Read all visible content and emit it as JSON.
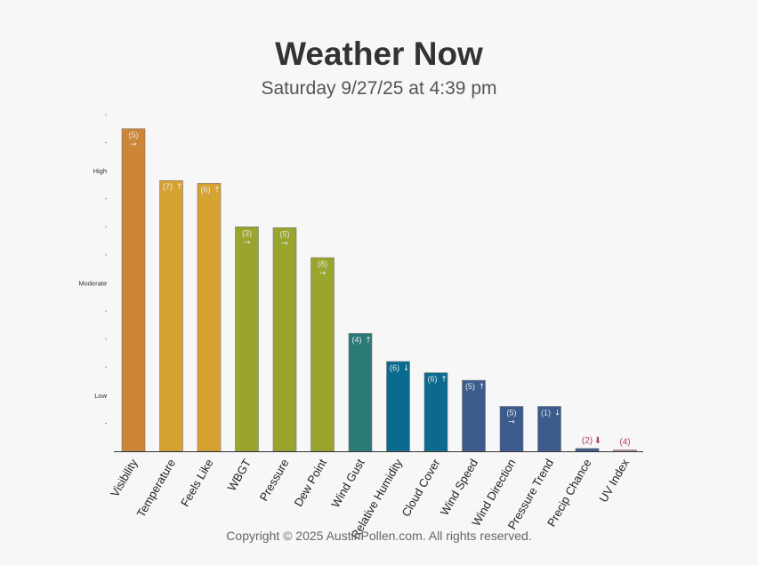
{
  "header": {
    "title": "Weather Now",
    "subtitle": "Saturday 9/27/25 at 4:39 pm"
  },
  "footer": {
    "copyright": "Copyright © 2025 AustinPollen.com.  All rights reserved."
  },
  "chart_data": {
    "type": "bar",
    "categories": [
      "Visibility",
      "Temperature",
      "Feels Like",
      "WBGT",
      "Pressure",
      "Dew Point",
      "Wind Gust",
      "Relative Humidity",
      "Cloud Cover",
      "Wind Speed",
      "Wind Direction",
      "Pressure Trend",
      "Precip Chance",
      "UV Index"
    ],
    "values": [
      11.5,
      9.65,
      9.55,
      8.0,
      7.97,
      6.9,
      4.2,
      3.2,
      2.8,
      2.53,
      1.6,
      1.6,
      0.1,
      0.05
    ],
    "labels": [
      "(5)",
      "(7)",
      "(6)",
      "(3)",
      "(5)",
      "(8)",
      "(4)",
      "(6)",
      "(6)",
      "(5)",
      "(5)",
      "(1)",
      "(2)",
      "(4)"
    ],
    "trends": [
      "→",
      "↑",
      "↑",
      "→",
      "→",
      "→",
      "↑",
      "↓",
      "↑",
      "↑",
      "→",
      "↓",
      "⬇",
      ""
    ],
    "colors": [
      "#cd8538",
      "#d6a333",
      "#d6a333",
      "#9aa52e",
      "#9aa52e",
      "#9aa52e",
      "#2a7a78",
      "#0a6b8e",
      "#0a6b8e",
      "#3a5b8c",
      "#3a5b8c",
      "#3a5b8c",
      "#3a5b8c",
      "#e0a0b0"
    ],
    "ylim": [
      0,
      12
    ],
    "y_ticks": [
      {
        "value": 1,
        "label": ""
      },
      {
        "value": 2,
        "label": "Low"
      },
      {
        "value": 3,
        "label": ""
      },
      {
        "value": 4,
        "label": ""
      },
      {
        "value": 5,
        "label": ""
      },
      {
        "value": 6,
        "label": "Moderate"
      },
      {
        "value": 7,
        "label": ""
      },
      {
        "value": 8,
        "label": ""
      },
      {
        "value": 9,
        "label": ""
      },
      {
        "value": 10,
        "label": "High"
      },
      {
        "value": 11,
        "label": ""
      },
      {
        "value": 12,
        "label": ""
      }
    ],
    "grid": false
  }
}
